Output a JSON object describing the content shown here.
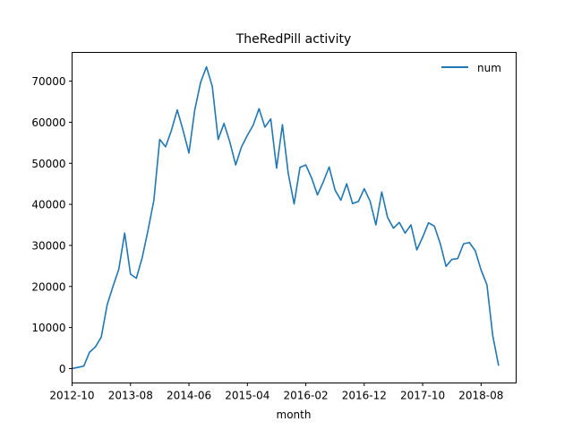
{
  "chart_data": {
    "type": "line",
    "title": "TheRedPill activity",
    "xlabel": "month",
    "ylabel": "",
    "legend": {
      "position": "top-right",
      "entries": [
        "num"
      ]
    },
    "grid": false,
    "color": "#1f77b4",
    "x_start": "2012-10",
    "x_step": "1 month",
    "xlim": [
      "2012-10",
      "2019-02"
    ],
    "ylim": [
      -3500,
      77000
    ],
    "x_ticks": [
      "2012-10",
      "2013-08",
      "2014-06",
      "2015-04",
      "2016-02",
      "2016-12",
      "2017-10",
      "2018-08"
    ],
    "y_ticks": [
      0,
      10000,
      20000,
      30000,
      40000,
      50000,
      60000,
      70000
    ],
    "y_tick_labels": [
      "0",
      "10000",
      "20000",
      "30000",
      "40000",
      "50000",
      "60000",
      "70000"
    ],
    "series": [
      {
        "name": "num",
        "values": [
          0,
          300,
          600,
          4000,
          5300,
          7700,
          15500,
          20000,
          24200,
          33000,
          23000,
          22000,
          27000,
          33700,
          41000,
          55800,
          54000,
          58000,
          63000,
          58000,
          52500,
          63000,
          69700,
          73500,
          68700,
          55800,
          59700,
          55200,
          49600,
          54000,
          56800,
          59300,
          63300,
          58800,
          60800,
          48800,
          59400,
          47500,
          40100,
          49000,
          49600,
          46400,
          42300,
          45500,
          49100,
          43500,
          41000,
          45000,
          40200,
          40700,
          43800,
          40800,
          35000,
          43000,
          36800,
          34200,
          35600,
          33000,
          35000,
          28900,
          32000,
          35500,
          34700,
          30500,
          24900,
          26600,
          26800,
          30400,
          30700,
          28700,
          24000,
          20400,
          8000,
          700
        ]
      }
    ]
  }
}
